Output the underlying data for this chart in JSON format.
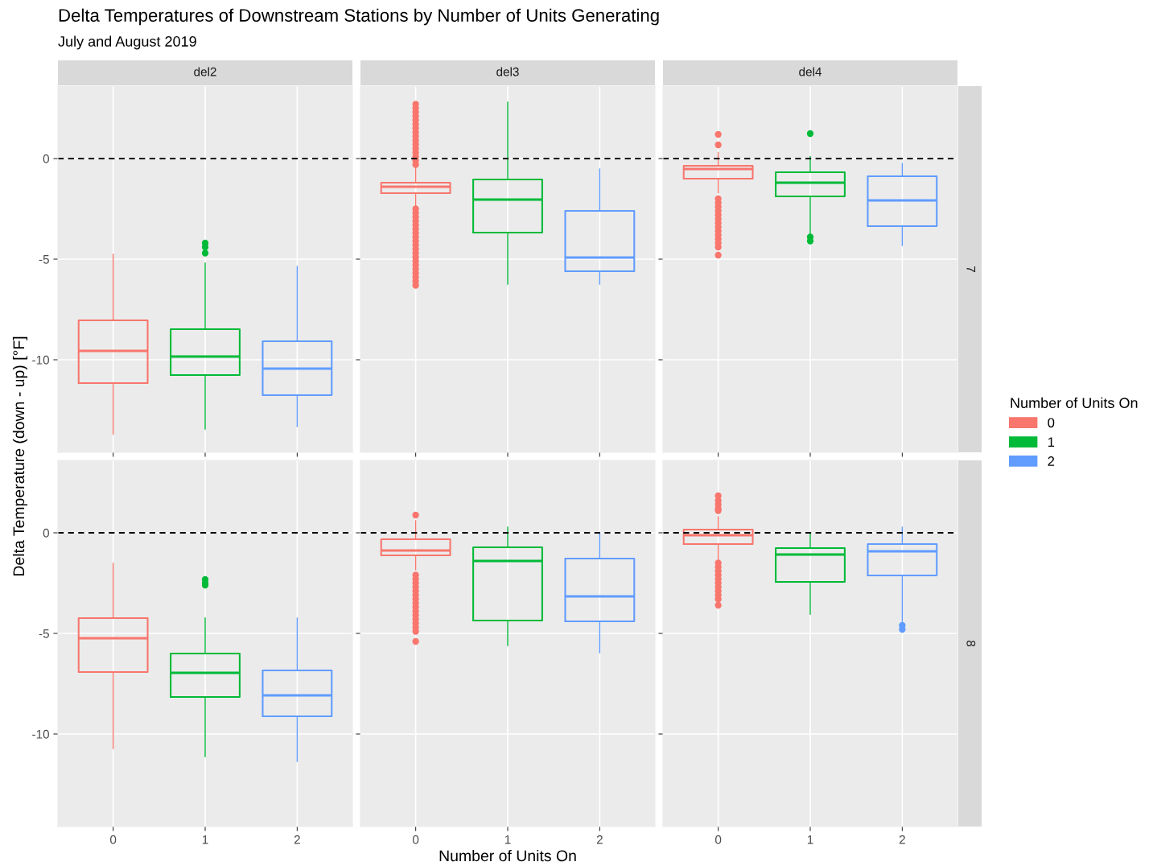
{
  "chart_data": [
    {
      "type": "box",
      "title": "Delta Temperatures of Downstream Stations by Number of Units Generating",
      "subtitle": "July and August 2019",
      "xlabel": "Number of Units On",
      "ylabel": "Delta Temperature (down - up) [°F]",
      "legend": "right",
      "legend_title": "Number of Units On",
      "annotations": [
        "del2"
      ],
      "categories": [
        "0",
        "1",
        "2"
      ],
      "ylim": [
        -14.6,
        3.6
      ],
      "yticks": [
        0,
        -5,
        -10
      ],
      "tick_labels": "y",
      "grid": true,
      "ref_lines": [
        {
          "axis": "y",
          "value": 0,
          "color": "#000000",
          "line_style": "dashed"
        }
      ],
      "series": [
        {
          "name": "0",
          "color": "#f8766d",
          "boxes": [
            {
              "low": -13.7,
              "q1": -11.16,
              "median": -9.56,
              "q3": -8.04,
              "high": -4.76
            },
            null,
            null
          ]
        },
        {
          "name": "1",
          "color": "#00ba38",
          "boxes": [
            null,
            {
              "low": -13.44,
              "q1": -10.76,
              "median": -9.84,
              "q3": -8.48,
              "high": -5.2,
              "outliers": [
                -4.2,
                -4.4,
                -4.7
              ]
            },
            null
          ]
        },
        {
          "name": "2",
          "color": "#619cff",
          "boxes": [
            null,
            null,
            {
              "low": -13.32,
              "q1": -11.76,
              "median": -10.44,
              "q3": -9.08,
              "high": -5.36
            }
          ]
        }
      ]
    },
    {
      "type": "box",
      "annotations": [
        "del3"
      ],
      "categories": [
        "0",
        "1",
        "2"
      ],
      "ylim": [
        -14.6,
        3.6
      ],
      "yticks": [
        0,
        -5,
        -10
      ],
      "tick_labels": false,
      "grid": true,
      "ref_lines": [
        {
          "axis": "y",
          "value": 0,
          "color": "#000000",
          "line_style": "dashed"
        }
      ],
      "series": [
        {
          "color": "#f8766d",
          "boxes": [
            {
              "low": -2.4,
              "q1": -1.72,
              "median": -1.4,
              "q3": -1.2,
              "high": -0.4,
              "outliers": [
                -0.3,
                -0.1,
                0.1,
                0.3,
                0.5,
                0.7,
                0.9,
                1.1,
                1.3,
                1.5,
                1.7,
                1.9,
                2.1,
                2.3,
                2.5,
                2.7,
                -2.5,
                -2.7,
                -2.9,
                -3.1,
                -3.3,
                -3.5,
                -3.7,
                -3.9,
                -4.1,
                -4.3,
                -4.5,
                -4.7,
                -4.9,
                -5.1,
                -5.3,
                -5.5,
                -5.7,
                -5.9,
                -6.1,
                -6.3
              ]
            },
            null,
            null
          ]
        },
        {
          "color": "#00ba38",
          "boxes": [
            null,
            {
              "low": -6.24,
              "q1": -3.68,
              "median": -2.04,
              "q3": -1.04,
              "high": 2.8
            },
            null
          ]
        },
        {
          "color": "#619cff",
          "boxes": [
            null,
            null,
            {
              "low": -6.24,
              "q1": -5.6,
              "median": -4.92,
              "q3": -2.6,
              "high": -0.52
            }
          ]
        }
      ]
    },
    {
      "type": "box",
      "annotations": [
        "del4",
        "7"
      ],
      "categories": [
        "0",
        "1",
        "2"
      ],
      "ylim": [
        -14.6,
        3.6
      ],
      "yticks": [
        0,
        -5,
        -10
      ],
      "tick_labels": false,
      "grid": true,
      "ref_lines": [
        {
          "axis": "y",
          "value": 0,
          "color": "#000000",
          "line_style": "dashed"
        }
      ],
      "series": [
        {
          "color": "#f8766d",
          "boxes": [
            {
              "low": -1.7,
              "q1": -1.0,
              "median": -0.52,
              "q3": -0.36,
              "high": 0.3,
              "outliers": [
                1.2,
                0.68,
                -2.0,
                -2.2,
                -2.4,
                -2.6,
                -2.8,
                -3.0,
                -3.2,
                -3.4,
                -3.6,
                -3.8,
                -4.0,
                -4.2,
                -4.4,
                -4.8
              ]
            },
            null,
            null
          ]
        },
        {
          "color": "#00ba38",
          "boxes": [
            null,
            {
              "low": -3.8,
              "q1": -1.88,
              "median": -1.2,
              "q3": -0.68,
              "high": 0.1,
              "outliers": [
                1.24,
                -3.9,
                -4.1
              ]
            },
            null
          ]
        },
        {
          "color": "#619cff",
          "boxes": [
            null,
            null,
            {
              "low": -4.32,
              "q1": -3.36,
              "median": -2.08,
              "q3": -0.88,
              "high": -0.24
            }
          ]
        }
      ]
    },
    {
      "type": "box",
      "categories": [
        "0",
        "1",
        "2"
      ],
      "ylim": [
        -14.6,
        3.6
      ],
      "yticks": [
        0,
        -5,
        -10
      ],
      "grid": true,
      "ref_lines": [
        {
          "axis": "y",
          "value": 0,
          "color": "#000000",
          "line_style": "dashed"
        }
      ],
      "series": [
        {
          "color": "#f8766d",
          "boxes": [
            {
              "low": -10.72,
              "q1": -6.92,
              "median": -5.24,
              "q3": -4.24,
              "high": -1.52
            },
            null,
            null
          ]
        },
        {
          "color": "#00ba38",
          "boxes": [
            null,
            {
              "low": -11.12,
              "q1": -8.16,
              "median": -6.96,
              "q3": -6.0,
              "high": -4.24,
              "outliers": [
                -2.32,
                -2.5,
                -2.6
              ]
            },
            null
          ]
        },
        {
          "color": "#619cff",
          "boxes": [
            null,
            null,
            {
              "low": -11.36,
              "q1": -9.12,
              "median": -8.08,
              "q3": -6.84,
              "high": -4.24
            }
          ]
        }
      ]
    },
    {
      "type": "box",
      "categories": [
        "0",
        "1",
        "2"
      ],
      "ylim": [
        -14.6,
        3.6
      ],
      "yticks": [
        0,
        -5,
        -10
      ],
      "tick_labels": "x",
      "grid": true,
      "ref_lines": [
        {
          "axis": "y",
          "value": 0,
          "color": "#000000",
          "line_style": "dashed"
        }
      ],
      "series": [
        {
          "color": "#f8766d",
          "boxes": [
            {
              "low": -1.84,
              "q1": -1.12,
              "median": -0.88,
              "q3": -0.32,
              "high": 0.6,
              "outliers": [
                0.88,
                -2.1,
                -2.3,
                -2.5,
                -2.7,
                -2.9,
                -3.1,
                -3.3,
                -3.5,
                -3.7,
                -3.9,
                -4.1,
                -4.3,
                -4.5,
                -4.7,
                -4.9,
                -5.4
              ]
            },
            null,
            null
          ]
        },
        {
          "color": "#00ba38",
          "boxes": [
            null,
            {
              "low": -5.6,
              "q1": -4.36,
              "median": -1.4,
              "q3": -0.72,
              "high": 0.28
            },
            null
          ]
        },
        {
          "color": "#619cff",
          "boxes": [
            null,
            null,
            {
              "low": -5.96,
              "q1": -4.4,
              "median": -3.16,
              "q3": -1.28,
              "high": 0
            }
          ]
        }
      ]
    },
    {
      "type": "box",
      "annotations": [
        "8"
      ],
      "categories": [
        "0",
        "1",
        "2"
      ],
      "ylim": [
        -14.6,
        3.6
      ],
      "yticks": [
        0,
        -5,
        -10
      ],
      "tick_labels": "x",
      "grid": true,
      "ref_lines": [
        {
          "axis": "y",
          "value": 0,
          "color": "#000000",
          "line_style": "dashed"
        }
      ],
      "series": [
        {
          "color": "#f8766d",
          "boxes": [
            {
              "low": -1.36,
              "q1": -0.56,
              "median": -0.12,
              "q3": 0.16,
              "high": 0.8,
              "outliers": [
                1.84,
                1.6,
                1.4,
                1.2,
                1.1,
                -1.5,
                -1.7,
                -1.9,
                -2.1,
                -2.3,
                -2.5,
                -2.7,
                -2.9,
                -3.1,
                -3.3,
                -3.6
              ]
            },
            null,
            null
          ]
        },
        {
          "color": "#00ba38",
          "boxes": [
            null,
            {
              "low": -4.04,
              "q1": -2.44,
              "median": -1.08,
              "q3": -0.76,
              "high": 0
            },
            null
          ]
        },
        {
          "color": "#619cff",
          "boxes": [
            null,
            null,
            {
              "low": -4.4,
              "q1": -2.12,
              "median": -0.92,
              "q3": -0.56,
              "high": 0.28,
              "outliers": [
                -4.6,
                -4.8
              ]
            }
          ]
        }
      ]
    }
  ]
}
